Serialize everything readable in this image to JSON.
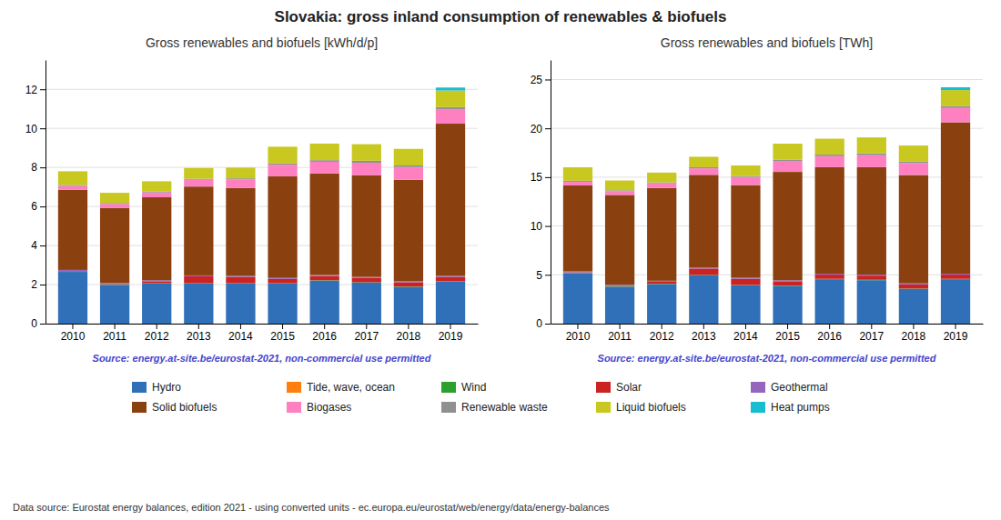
{
  "title": "Slovakia: gross inland consumption of renewables & biofuels",
  "annotations": [
    "Data source: Eurostat energy balances, edition 2021 - using converted units - ec.europa.eu/eurostat/web/energy/data/energy-balances"
  ],
  "chart_data": [
    {
      "type": "bar",
      "stacked": true,
      "grid": true,
      "legend": "bottom",
      "title": "Gross renewables and biofuels [kWh/d/p]",
      "annotations": [
        "Source: energy.at-site.be/eurostat-2021, non-commercial use permitted"
      ],
      "categories": [
        "2010",
        "2011",
        "2012",
        "2013",
        "2014",
        "2015",
        "2016",
        "2017",
        "2018",
        "2019"
      ],
      "series": [
        {
          "name": "Hydro",
          "color": "#3070b8",
          "values": [
            2.65,
            1.98,
            2.05,
            2.05,
            2.05,
            2.05,
            2.2,
            2.1,
            1.88,
            2.15
          ]
        },
        {
          "name": "Tide, wave, ocean",
          "color": "#ff7f0e",
          "values": [
            0.0,
            0.0,
            0.0,
            0.0,
            0.0,
            0.0,
            0.0,
            0.0,
            0.0,
            0.0
          ]
        },
        {
          "name": "Wind",
          "color": "#2ca02c",
          "values": [
            0.02,
            0.02,
            0.02,
            0.02,
            0.02,
            0.02,
            0.02,
            0.02,
            0.02,
            0.02
          ]
        },
        {
          "name": "Solar",
          "color": "#cc2222",
          "values": [
            0.03,
            0.03,
            0.1,
            0.35,
            0.32,
            0.22,
            0.22,
            0.22,
            0.22,
            0.22
          ]
        },
        {
          "name": "Geothermal",
          "color": "#9467bd",
          "values": [
            0.05,
            0.05,
            0.05,
            0.05,
            0.05,
            0.05,
            0.05,
            0.05,
            0.05,
            0.05
          ]
        },
        {
          "name": "Solid biofuels",
          "color": "#8B4010",
          "values": [
            4.1,
            3.85,
            4.25,
            4.55,
            4.5,
            5.2,
            5.2,
            5.2,
            5.2,
            7.8
          ]
        },
        {
          "name": "Biogases",
          "color": "#ff80c0",
          "values": [
            0.2,
            0.2,
            0.25,
            0.35,
            0.45,
            0.6,
            0.6,
            0.65,
            0.65,
            0.75
          ]
        },
        {
          "name": "Renewable waste",
          "color": "#909090",
          "values": [
            0.05,
            0.05,
            0.05,
            0.05,
            0.05,
            0.07,
            0.08,
            0.1,
            0.08,
            0.1
          ]
        },
        {
          "name": "Liquid biofuels",
          "color": "#c8c820",
          "values": [
            0.7,
            0.52,
            0.52,
            0.55,
            0.55,
            0.85,
            0.85,
            0.85,
            0.85,
            0.85
          ]
        },
        {
          "name": "Heat pumps",
          "color": "#17becf",
          "values": [
            0.0,
            0.0,
            0.0,
            0.0,
            0.0,
            0.0,
            0.0,
            0.0,
            0.0,
            0.15
          ]
        }
      ],
      "ylim": [
        0,
        13.5
      ],
      "yticks": [
        0,
        2,
        4,
        6,
        8,
        10,
        12
      ]
    },
    {
      "type": "bar",
      "stacked": true,
      "grid": true,
      "legend": "bottom",
      "title": "Gross renewables and biofuels [TWh]",
      "annotations": [
        "Source: energy.at-site.be/eurostat-2021, non-commercial use permitted"
      ],
      "categories": [
        "2010",
        "2011",
        "2012",
        "2013",
        "2014",
        "2015",
        "2016",
        "2017",
        "2018",
        "2019"
      ],
      "series": [
        {
          "name": "Hydro",
          "color": "#3070b8",
          "values": [
            5.15,
            3.78,
            4.05,
            4.95,
            3.92,
            3.87,
            4.55,
            4.45,
            3.55,
            4.55
          ]
        },
        {
          "name": "Tide, wave, ocean",
          "color": "#ff7f0e",
          "values": [
            0.0,
            0.0,
            0.0,
            0.0,
            0.0,
            0.0,
            0.0,
            0.0,
            0.0,
            0.0
          ]
        },
        {
          "name": "Wind",
          "color": "#2ca02c",
          "values": [
            0.04,
            0.04,
            0.04,
            0.04,
            0.04,
            0.04,
            0.04,
            0.04,
            0.04,
            0.04
          ]
        },
        {
          "name": "Solar",
          "color": "#cc2222",
          "values": [
            0.06,
            0.06,
            0.2,
            0.65,
            0.63,
            0.43,
            0.43,
            0.43,
            0.43,
            0.43
          ]
        },
        {
          "name": "Geothermal",
          "color": "#9467bd",
          "values": [
            0.1,
            0.1,
            0.1,
            0.1,
            0.1,
            0.1,
            0.1,
            0.1,
            0.1,
            0.1
          ]
        },
        {
          "name": "Solid biofuels",
          "color": "#8B4010",
          "values": [
            8.8,
            9.2,
            9.5,
            9.5,
            9.5,
            11.1,
            10.9,
            11.0,
            11.1,
            15.5
          ]
        },
        {
          "name": "Biogases",
          "color": "#ff80c0",
          "values": [
            0.38,
            0.38,
            0.48,
            0.67,
            0.83,
            1.13,
            1.13,
            1.23,
            1.23,
            1.47
          ]
        },
        {
          "name": "Renewable waste",
          "color": "#909090",
          "values": [
            0.1,
            0.1,
            0.1,
            0.1,
            0.1,
            0.13,
            0.16,
            0.19,
            0.16,
            0.2
          ]
        },
        {
          "name": "Liquid biofuels",
          "color": "#c8c820",
          "values": [
            1.38,
            1.0,
            1.0,
            1.08,
            1.08,
            1.63,
            1.63,
            1.63,
            1.63,
            1.63
          ]
        },
        {
          "name": "Heat pumps",
          "color": "#17becf",
          "values": [
            0.0,
            0.0,
            0.0,
            0.0,
            0.0,
            0.0,
            0.0,
            0.0,
            0.0,
            0.29
          ]
        }
      ],
      "ylim": [
        0,
        27.0
      ],
      "yticks": [
        0,
        5,
        10,
        15,
        20,
        25
      ]
    }
  ]
}
